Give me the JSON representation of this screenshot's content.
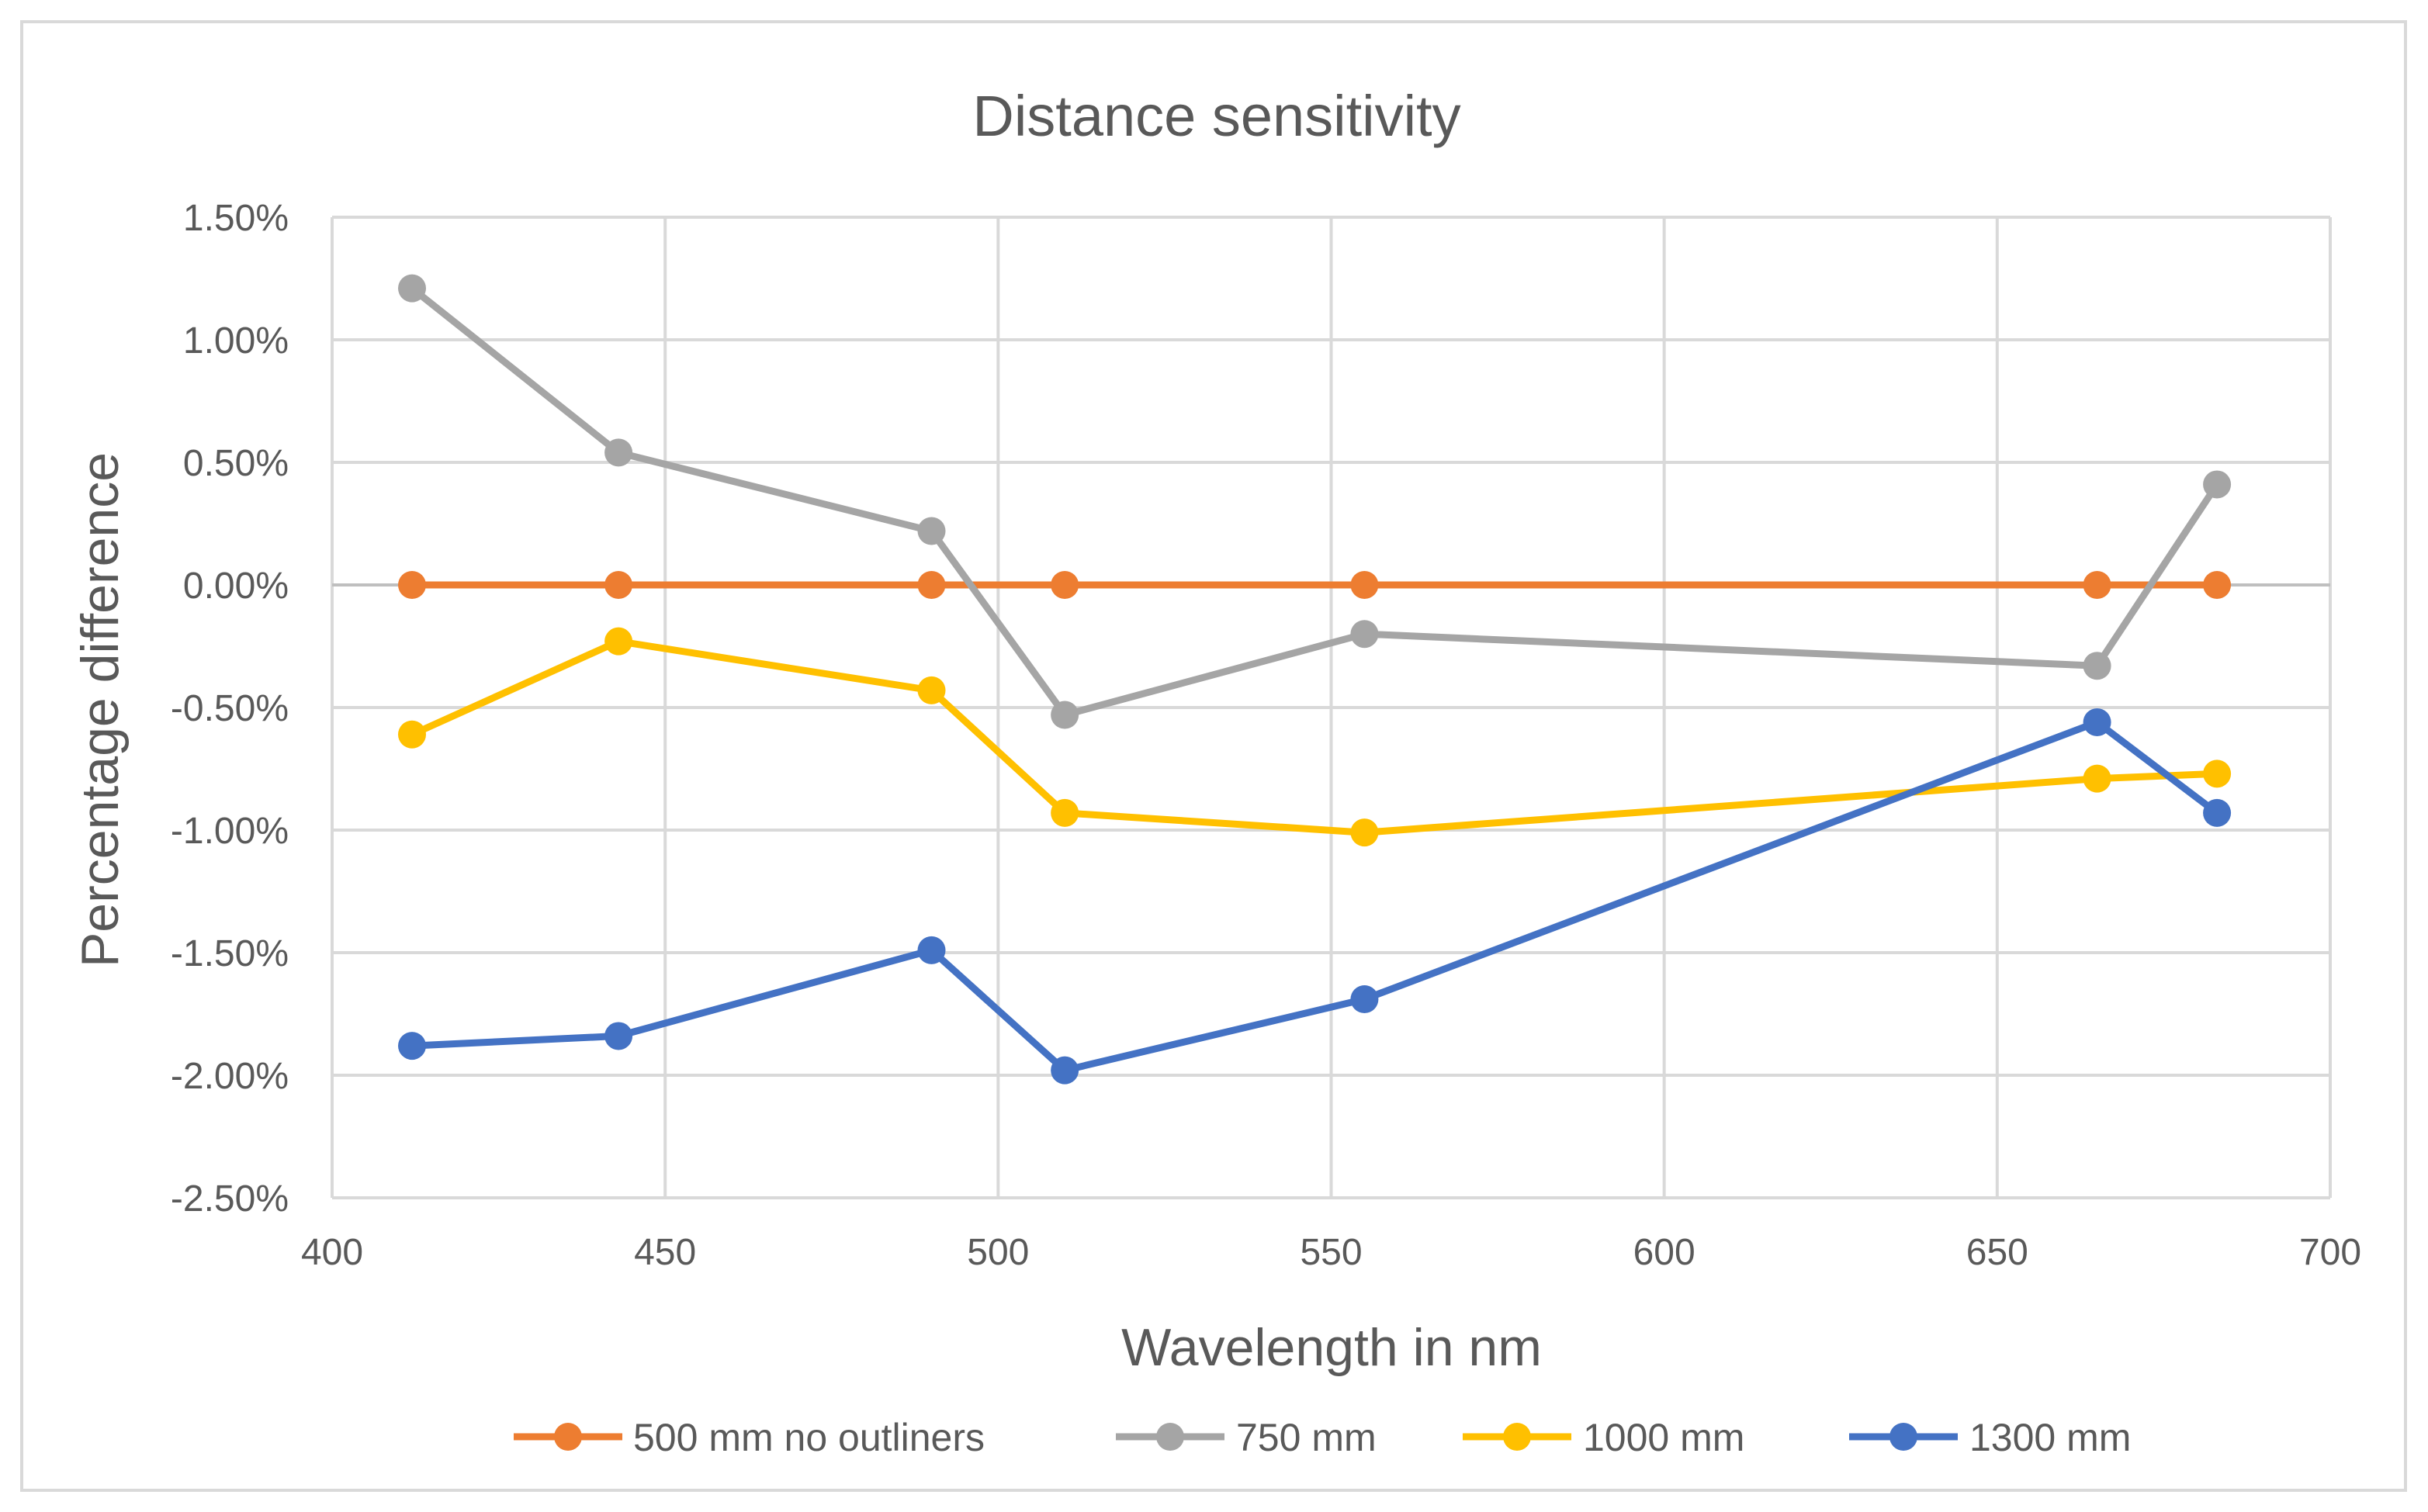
{
  "chart_data": {
    "type": "line",
    "title": "Distance sensitivity",
    "xlabel": "Wavelength in nm",
    "ylabel": "Percentage difference",
    "xlim": [
      400,
      700
    ],
    "ylim": [
      -2.5,
      1.5
    ],
    "xticks": [
      400,
      450,
      500,
      550,
      600,
      650,
      700
    ],
    "xtick_labels": [
      "400",
      "450",
      "500",
      "550",
      "600",
      "650",
      "700"
    ],
    "yticks": [
      1.5,
      1.0,
      0.5,
      0.0,
      -0.5,
      -1.0,
      -1.5,
      -2.0,
      -2.5
    ],
    "ytick_labels": [
      "1.50%",
      "1.00%",
      "0.50%",
      "0.00%",
      "-0.50%",
      "-1.00%",
      "-1.50%",
      "-2.00%",
      "-2.50%"
    ],
    "grid": true,
    "legend_position": "bottom",
    "series": [
      {
        "name": "500 mm no outliners",
        "color": "#ED7D31",
        "x": [
          412,
          443,
          490,
          510,
          555,
          665,
          683
        ],
        "y": [
          0.0,
          0.0,
          0.0,
          0.0,
          0.0,
          0.0,
          0.0
        ]
      },
      {
        "name": "750 mm",
        "color": "#A5A5A5",
        "x": [
          412,
          443,
          490,
          510,
          555,
          665,
          683
        ],
        "y": [
          1.21,
          0.54,
          0.22,
          -0.53,
          -0.2,
          -0.33,
          0.41
        ]
      },
      {
        "name": "1000 mm",
        "color": "#FFC000",
        "x": [
          412,
          443,
          490,
          510,
          555,
          665,
          683
        ],
        "y": [
          -0.61,
          -0.23,
          -0.43,
          -0.93,
          -1.01,
          -0.79,
          -0.77
        ]
      },
      {
        "name": "1300 mm",
        "color": "#4472C4",
        "x": [
          412,
          443,
          490,
          510,
          555,
          665,
          683
        ],
        "y": [
          -1.88,
          -1.84,
          -1.49,
          -1.98,
          -1.69,
          -0.56,
          -0.93
        ]
      }
    ]
  }
}
